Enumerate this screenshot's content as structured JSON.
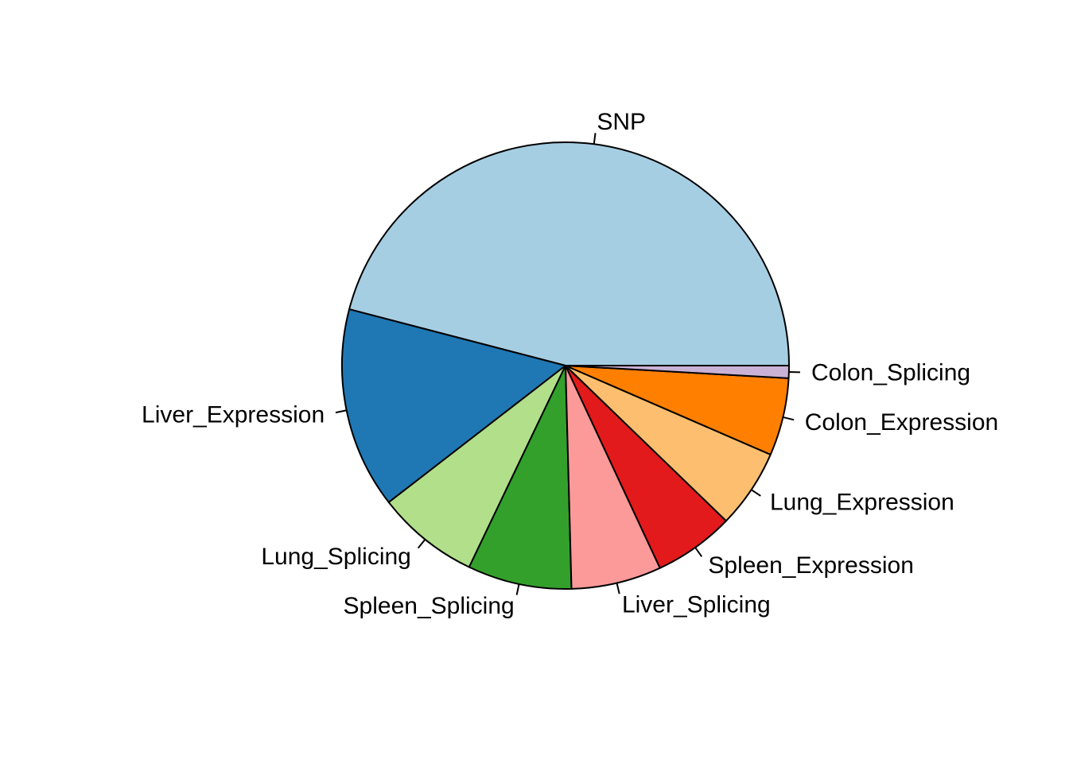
{
  "chart_data": {
    "type": "pie",
    "title": "",
    "direction": "counterclockwise",
    "start_angle_deg": 0,
    "slices": [
      {
        "label": "SNP",
        "value": 45.8,
        "color": "#A6CEE3"
      },
      {
        "label": "Liver_Expression",
        "value": 14.5,
        "color": "#1F78B4"
      },
      {
        "label": "Lung_Splicing",
        "value": 7.4,
        "color": "#B2DF8A"
      },
      {
        "label": "Spleen_Splicing",
        "value": 7.5,
        "color": "#33A02C"
      },
      {
        "label": "Liver_Splicing",
        "value": 6.5,
        "color": "#FB9A99"
      },
      {
        "label": "Spleen_Expression",
        "value": 5.8,
        "color": "#E31A1C"
      },
      {
        "label": "Lung_Expression",
        "value": 5.7,
        "color": "#FDBF6F"
      },
      {
        "label": "Colon_Expression",
        "value": 5.6,
        "color": "#FF7F00"
      },
      {
        "label": "Colon_Splicing",
        "value": 0.9,
        "color": "#CAB2D6"
      }
    ]
  }
}
